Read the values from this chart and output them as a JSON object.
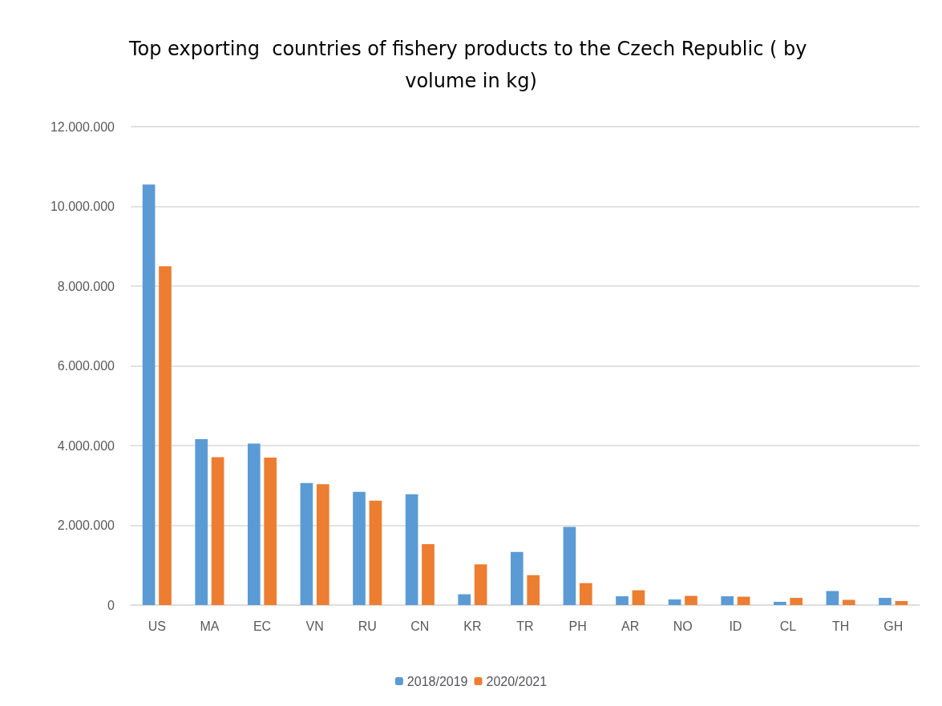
{
  "chart_data": {
    "type": "bar",
    "title": "Top exporting  countries of fishery products to the Czech Republic ( by volume in kg)",
    "categories": [
      "US",
      "MA",
      "EC",
      "VN",
      "RU",
      "CN",
      "KR",
      "TR",
      "PH",
      "AR",
      "NO",
      "ID",
      "CL",
      "TH",
      "GH"
    ],
    "series": [
      {
        "name": "2018/2019",
        "color": "#5b9bd5",
        "values": [
          10550000,
          4160000,
          4050000,
          3060000,
          2840000,
          2780000,
          270000,
          1330000,
          1960000,
          220000,
          140000,
          220000,
          80000,
          350000,
          180000
        ]
      },
      {
        "name": "2020/2021",
        "color": "#ed7d31",
        "values": [
          8500000,
          3710000,
          3700000,
          3030000,
          2620000,
          1530000,
          1020000,
          750000,
          550000,
          370000,
          230000,
          210000,
          180000,
          130000,
          100000
        ]
      }
    ],
    "ylim": [
      0,
      12000000
    ],
    "yticks": [
      {
        "value": 0,
        "label": "0"
      },
      {
        "value": 2000000,
        "label": "2.000.000"
      },
      {
        "value": 4000000,
        "label": "4.000.000"
      },
      {
        "value": 6000000,
        "label": "6.000.000"
      },
      {
        "value": 8000000,
        "label": "8.000.000"
      },
      {
        "value": 10000000,
        "label": "10.000.000"
      },
      {
        "value": 12000000,
        "label": "12.000.000"
      }
    ],
    "grid": "y",
    "legend": "bottom"
  }
}
